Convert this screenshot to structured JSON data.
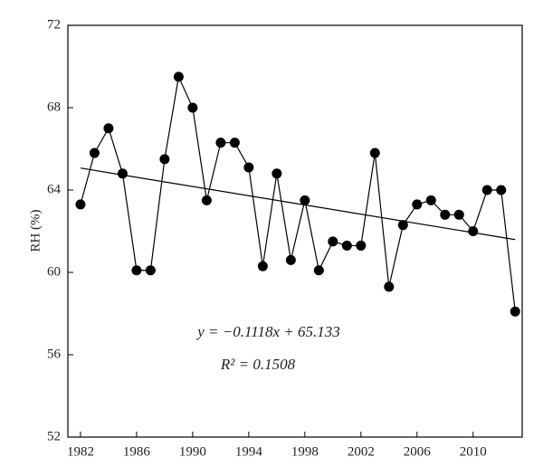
{
  "chart_data": {
    "type": "line",
    "y_label": "RH (%)",
    "annotations": [
      "y = −0.1118x + 65.133",
      "R² = 0.1508"
    ],
    "x": [
      1982,
      1983,
      1984,
      1985,
      1986,
      1987,
      1988,
      1989,
      1990,
      1991,
      1992,
      1993,
      1994,
      1995,
      1996,
      1997,
      1998,
      1999,
      2000,
      2001,
      2002,
      2003,
      2004,
      2005,
      2006,
      2007,
      2008,
      2009,
      2010,
      2011,
      2012,
      2013
    ],
    "series": [
      {
        "name": "RH",
        "color": "#000000",
        "values": [
          63.3,
          65.8,
          67.0,
          64.8,
          60.1,
          60.1,
          65.5,
          69.5,
          68.0,
          63.5,
          66.3,
          66.3,
          65.1,
          60.3,
          64.8,
          60.6,
          63.5,
          60.1,
          61.5,
          61.3,
          61.3,
          65.8,
          59.3,
          62.3,
          63.3,
          63.5,
          62.8,
          62.8,
          62.0,
          64.0,
          64.0,
          58.1
        ]
      }
    ],
    "trendline": true,
    "xlim": [
      1981.1,
      2013.5
    ],
    "xticks": [
      1982,
      1986,
      1990,
      1994,
      1998,
      2002,
      2006,
      2010
    ],
    "ylim": [
      52,
      72
    ],
    "yticks": [
      52,
      56,
      60,
      64,
      68,
      72
    ]
  }
}
